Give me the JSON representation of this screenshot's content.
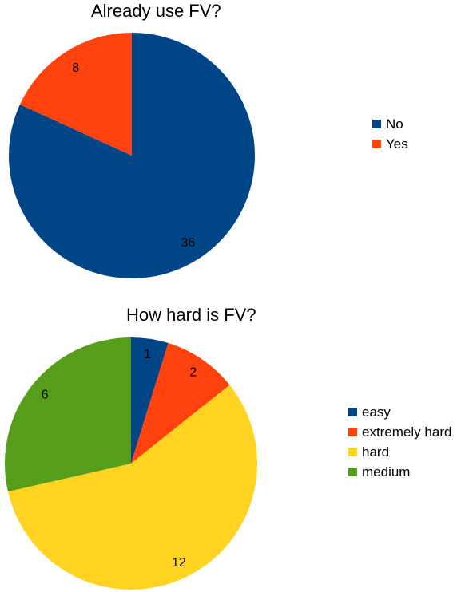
{
  "chart_data": [
    {
      "type": "pie",
      "title": "Already use FV?",
      "categories": [
        "No",
        "Yes"
      ],
      "values": [
        36,
        8
      ],
      "colors": [
        "#004586",
        "#ff420e"
      ],
      "legend_position": "right",
      "data_labels": [
        "36",
        "8"
      ]
    },
    {
      "type": "pie",
      "title": "How hard is FV?",
      "categories": [
        "easy",
        "extremely hard",
        "hard",
        "medium"
      ],
      "values": [
        1,
        2,
        12,
        6
      ],
      "colors": [
        "#004586",
        "#ff420e",
        "#ffd320",
        "#579d1c"
      ],
      "legend_position": "right",
      "data_labels": [
        "1",
        "2",
        "12",
        "6"
      ]
    }
  ]
}
